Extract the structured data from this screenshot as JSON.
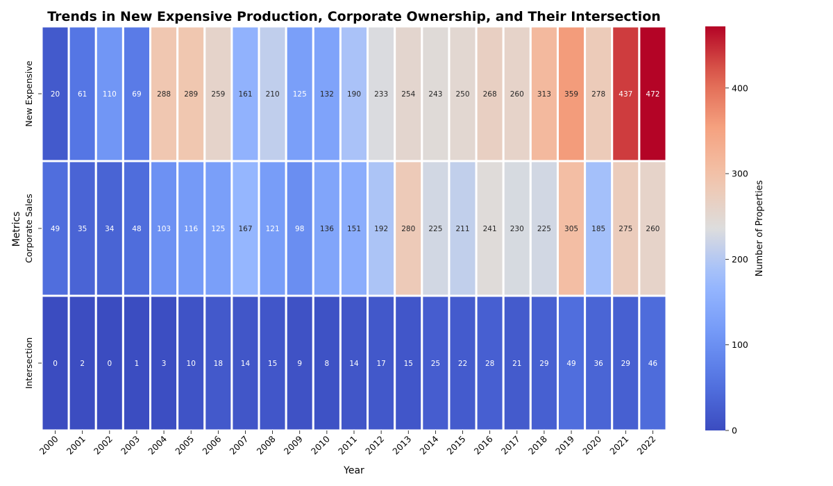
{
  "chart_data": {
    "type": "heatmap",
    "title": "Trends in New Expensive Production, Corporate Ownership, and Their Intersection",
    "xlabel": "Year",
    "ylabel": "Metrics",
    "colorbar_label": "Number of Properties",
    "colormap": "coolwarm",
    "color_range": [
      0,
      472
    ],
    "colorbar_ticks": [
      0,
      100,
      200,
      300,
      400
    ],
    "x": [
      "2000",
      "2001",
      "2002",
      "2003",
      "2004",
      "2005",
      "2006",
      "2007",
      "2008",
      "2009",
      "2010",
      "2011",
      "2012",
      "2013",
      "2014",
      "2015",
      "2016",
      "2017",
      "2018",
      "2019",
      "2020",
      "2021",
      "2022"
    ],
    "rows": [
      "New Expensive",
      "Corporate Sales",
      "Intersection"
    ],
    "values": [
      [
        20,
        61,
        110,
        69,
        288,
        289,
        259,
        161,
        210,
        125,
        132,
        190,
        233,
        254,
        243,
        250,
        268,
        260,
        313,
        359,
        278,
        437,
        472
      ],
      [
        49,
        35,
        34,
        48,
        103,
        116,
        125,
        167,
        121,
        98,
        136,
        151,
        192,
        280,
        225,
        211,
        241,
        230,
        225,
        305,
        185,
        275,
        260
      ],
      [
        0,
        2,
        0,
        1,
        3,
        10,
        18,
        14,
        15,
        9,
        8,
        14,
        17,
        15,
        25,
        22,
        28,
        21,
        29,
        49,
        36,
        29,
        46
      ]
    ],
    "legend": "colorbar-right",
    "grid": false
  }
}
